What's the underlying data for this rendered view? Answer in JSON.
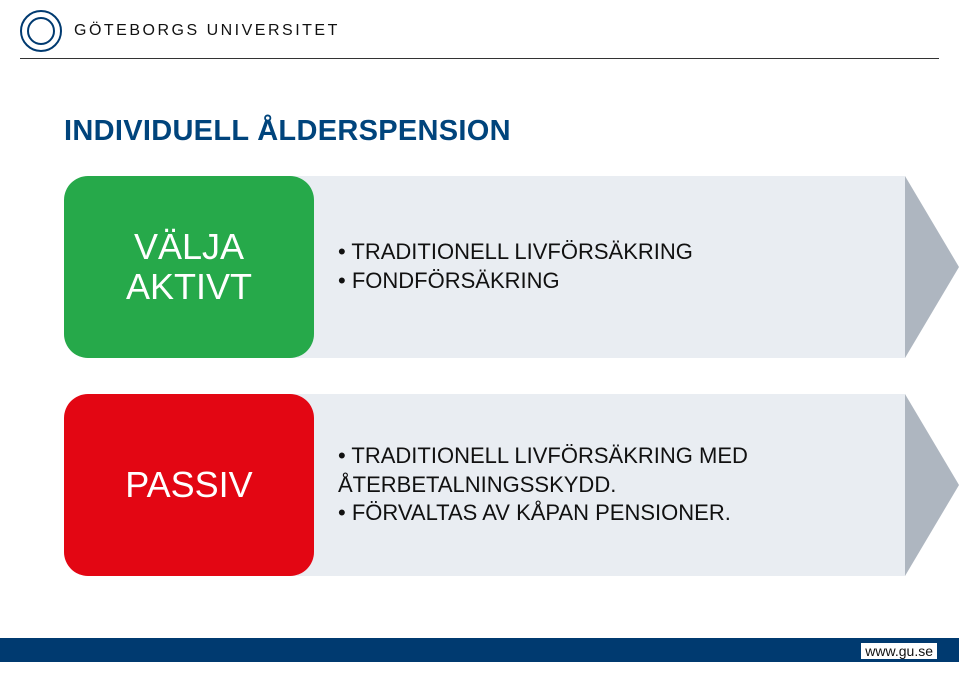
{
  "header": {
    "university": "GÖTEBORGS UNIVERSITET",
    "url": "www.gu.se"
  },
  "title": "INDIVIDUELL ÅLDERSPENSION",
  "rows": [
    {
      "box_label_line1": "VÄLJA",
      "box_label_line2": "AKTIVT",
      "box_bg": "#26a94a",
      "box_text_color": "#ffffff",
      "arrow_fill": "#e9edf2",
      "arrow_head": "#aeb6c0",
      "bullets": [
        "TRADITIONELL LIVFÖRSÄKRING",
        "FONDFÖRSÄKRING"
      ]
    },
    {
      "box_label_line1": "PASSIV",
      "box_label_line2": "",
      "box_bg": "#e30613",
      "box_text_color": "#ffffff",
      "arrow_fill": "#e9edf2",
      "arrow_head": "#aeb6c0",
      "bullets": [
        "TRADITIONELL LIVFÖRSÄKRING MED ÅTERBETALNINGSSKYDD.",
        "FÖRVALTAS AV KÅPAN PENSIONER."
      ]
    }
  ],
  "colors": {
    "brand_blue": "#003a70",
    "title_blue": "#00447c"
  }
}
